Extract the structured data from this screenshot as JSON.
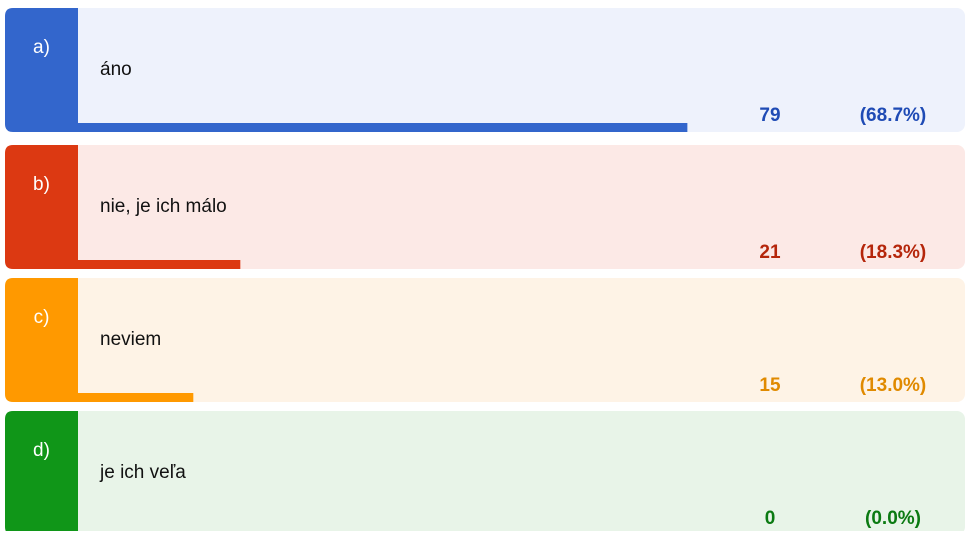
{
  "chart_data": {
    "type": "bar",
    "letters": [
      "a)",
      "b)",
      "c)",
      "d)"
    ],
    "categories": [
      "áno",
      "nie, je ich málo",
      "neviem",
      "je ich veľa"
    ],
    "values": [
      79,
      21,
      15,
      0
    ],
    "percents": [
      68.7,
      18.3,
      13.0,
      0.0
    ],
    "percent_labels": [
      "(68.7%)",
      "(18.3%)",
      "(13.0%)",
      "(0.0%)"
    ],
    "colors": [
      "#3366cc",
      "#dc3912",
      "#ff9900",
      "#109618"
    ],
    "backgrounds": [
      "#eef2fc",
      "#fce9e6",
      "#fef3e6",
      "#e8f4e8"
    ],
    "text_colors": [
      "#1f4bb5",
      "#b5260b",
      "#e08a00",
      "#0b7a12"
    ],
    "xlim": [
      0,
      100
    ]
  }
}
